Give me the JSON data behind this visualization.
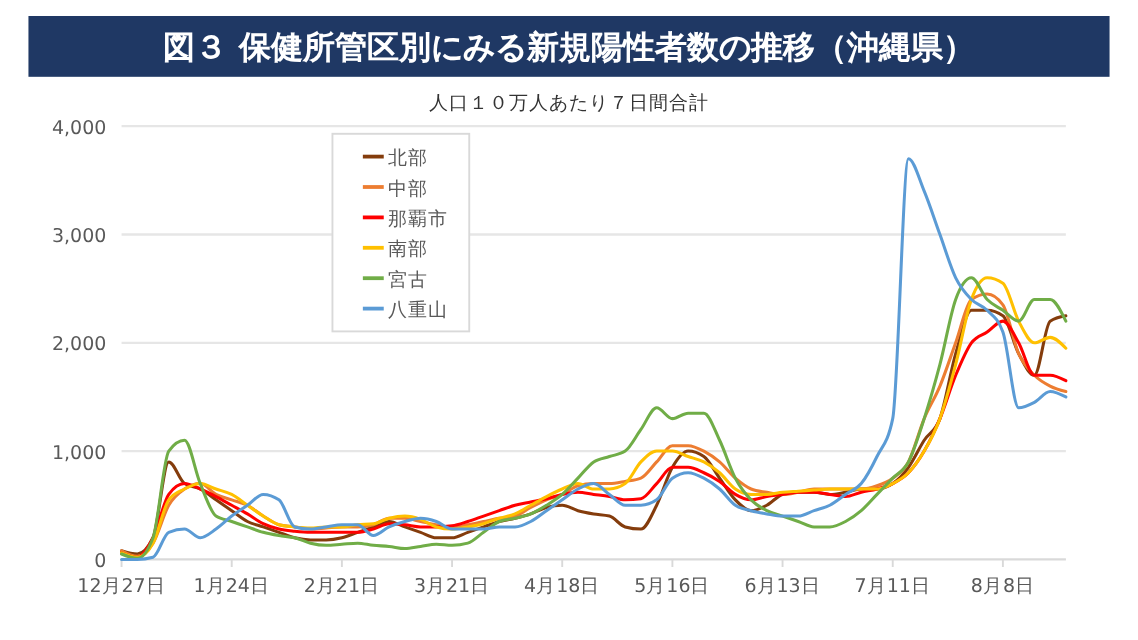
{
  "chart_data": {
    "type": "line",
    "title": "図３ 保健所管区別にみる新規陽性者数の推移（沖縄県）",
    "subtitle": "人口１０万人あたり７日間合計",
    "categories": [
      "12月27日",
      null,
      null,
      null,
      null,
      null,
      null,
      "1月24日",
      null,
      null,
      null,
      null,
      null,
      null,
      "2月21日",
      null,
      null,
      null,
      null,
      null,
      null,
      "3月21日",
      null,
      null,
      null,
      null,
      null,
      null,
      "4月18日",
      null,
      null,
      null,
      null,
      null,
      null,
      "5月16日",
      null,
      null,
      null,
      null,
      null,
      null,
      "6月13日",
      null,
      null,
      null,
      null,
      null,
      null,
      "7月11日",
      null,
      null,
      null,
      null,
      null,
      null,
      "8月8日",
      null,
      null,
      null,
      null
    ],
    "series": [
      {
        "name": "北部",
        "color": "#843c0c",
        "values": [
          80,
          50,
          200,
          900,
          700,
          650,
          550,
          450,
          350,
          300,
          250,
          200,
          180,
          180,
          200,
          250,
          300,
          350,
          300,
          250,
          200,
          200,
          250,
          300,
          350,
          380,
          420,
          480,
          500,
          450,
          420,
          400,
          300,
          280,
          500,
          850,
          1000,
          950,
          750,
          550,
          450,
          500,
          600,
          620,
          620,
          600,
          620,
          650,
          650,
          700,
          850,
          1100,
          1300,
          1900,
          2300,
          2300,
          2250,
          1900,
          1700,
          2200,
          2250
        ]
      },
      {
        "name": "中部",
        "color": "#ed7d31",
        "values": [
          80,
          30,
          150,
          500,
          650,
          700,
          600,
          550,
          500,
          400,
          320,
          300,
          280,
          290,
          300,
          300,
          320,
          380,
          380,
          350,
          320,
          300,
          320,
          350,
          380,
          400,
          480,
          550,
          600,
          680,
          700,
          700,
          720,
          750,
          900,
          1050,
          1050,
          1000,
          900,
          750,
          650,
          620,
          600,
          620,
          650,
          650,
          650,
          650,
          680,
          750,
          900,
          1300,
          1600,
          2000,
          2400,
          2450,
          2350,
          1900,
          1700,
          1600,
          1550
        ]
      },
      {
        "name": "那覇市",
        "color": "#ff0000",
        "values": [
          60,
          20,
          200,
          600,
          700,
          650,
          580,
          500,
          420,
          330,
          280,
          260,
          250,
          250,
          250,
          250,
          280,
          330,
          320,
          300,
          300,
          310,
          350,
          400,
          450,
          500,
          530,
          560,
          600,
          620,
          600,
          580,
          550,
          560,
          700,
          850,
          850,
          800,
          720,
          600,
          550,
          580,
          600,
          620,
          620,
          600,
          580,
          620,
          650,
          700,
          800,
          1000,
          1300,
          1700,
          2000,
          2100,
          2200,
          2000,
          1700,
          1700,
          1650
        ]
      },
      {
        "name": "南部",
        "color": "#ffc000",
        "values": [
          60,
          20,
          150,
          550,
          650,
          700,
          650,
          600,
          500,
          400,
          320,
          300,
          290,
          300,
          300,
          320,
          330,
          380,
          400,
          370,
          300,
          280,
          300,
          330,
          380,
          420,
          500,
          580,
          650,
          700,
          650,
          650,
          700,
          900,
          1000,
          1000,
          950,
          900,
          800,
          650,
          600,
          600,
          620,
          630,
          640,
          650,
          650,
          650,
          650,
          700,
          800,
          1000,
          1300,
          1800,
          2400,
          2600,
          2550,
          2200,
          2000,
          2050,
          1950
        ]
      },
      {
        "name": "宮古",
        "color": "#70ad47",
        "values": [
          50,
          10,
          200,
          1000,
          1100,
          700,
          400,
          350,
          300,
          250,
          220,
          200,
          150,
          130,
          140,
          150,
          130,
          120,
          100,
          120,
          140,
          130,
          150,
          250,
          350,
          380,
          420,
          500,
          600,
          750,
          900,
          950,
          1000,
          1200,
          1400,
          1300,
          1350,
          1350,
          1100,
          750,
          550,
          450,
          400,
          350,
          300,
          300,
          350,
          450,
          600,
          750,
          900,
          1300,
          1800,
          2400,
          2600,
          2400,
          2300,
          2200,
          2400,
          2400,
          2200
        ]
      },
      {
        "name": "八重山",
        "color": "#5b9bd5",
        "values": [
          0,
          0,
          20,
          250,
          280,
          200,
          280,
          400,
          500,
          600,
          550,
          300,
          280,
          300,
          320,
          320,
          220,
          300,
          350,
          380,
          350,
          280,
          280,
          280,
          300,
          300,
          350,
          450,
          550,
          650,
          700,
          600,
          500,
          500,
          550,
          750,
          800,
          750,
          650,
          500,
          450,
          420,
          400,
          400,
          450,
          500,
          600,
          700,
          950,
          1300,
          3700,
          3400,
          3000,
          2600,
          2400,
          2300,
          2100,
          1400,
          1450,
          1550,
          1500
        ]
      }
    ],
    "ylim": [
      0,
      4000
    ],
    "yticks": [
      {
        "value": 0,
        "label": "0"
      },
      {
        "value": 1000,
        "label": "1,000"
      },
      {
        "value": 2000,
        "label": "2,000"
      },
      {
        "value": 3000,
        "label": "3,000"
      },
      {
        "value": 4000,
        "label": "4,000"
      }
    ],
    "grid": "y",
    "legend": "top left",
    "marker": "none",
    "line_style": "solid"
  }
}
